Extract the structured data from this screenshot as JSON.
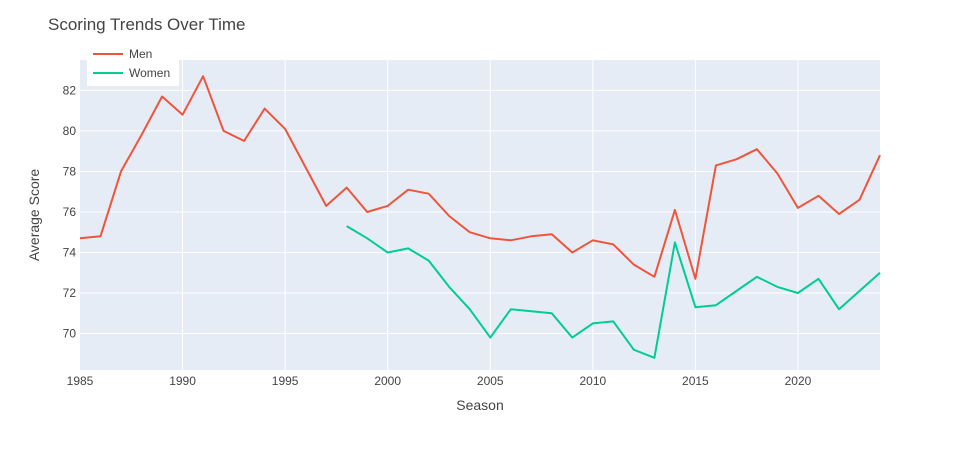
{
  "chart_data": {
    "type": "line",
    "title": "Scoring Trends Over Time",
    "xlabel": "Season",
    "ylabel": "Average Score",
    "xlim": [
      1985,
      2024
    ],
    "ylim": [
      68.2,
      83.5
    ],
    "xticks": [
      1985,
      1990,
      1995,
      2000,
      2005,
      2010,
      2015,
      2020
    ],
    "yticks": [
      70,
      72,
      74,
      76,
      78,
      80,
      82
    ],
    "grid": true,
    "legend": "top-left",
    "series": [
      {
        "name": "Men",
        "color": "#EF553B",
        "x": [
          1985,
          1986,
          1987,
          1988,
          1989,
          1990,
          1991,
          1992,
          1993,
          1994,
          1995,
          1996,
          1997,
          1998,
          1999,
          2000,
          2001,
          2002,
          2003,
          2004,
          2005,
          2006,
          2007,
          2008,
          2009,
          2010,
          2011,
          2012,
          2013,
          2014,
          2015,
          2016,
          2017,
          2018,
          2019,
          2020,
          2021,
          2022,
          2023,
          2024
        ],
        "values": [
          74.7,
          74.8,
          78.0,
          79.8,
          81.7,
          80.8,
          82.7,
          80.0,
          79.5,
          81.1,
          80.1,
          78.2,
          76.3,
          77.2,
          76.0,
          76.3,
          77.1,
          76.9,
          75.8,
          75.0,
          74.7,
          74.6,
          74.8,
          74.9,
          74.0,
          74.6,
          74.4,
          73.4,
          72.8,
          76.1,
          72.7,
          78.3,
          78.6,
          79.1,
          77.9,
          76.2,
          76.8,
          75.9,
          76.6,
          78.8
        ]
      },
      {
        "name": "Women",
        "color": "#00CC96",
        "x": [
          1998,
          1999,
          2000,
          2001,
          2002,
          2003,
          2004,
          2005,
          2006,
          2007,
          2008,
          2009,
          2010,
          2011,
          2012,
          2013,
          2014,
          2015,
          2016,
          2017,
          2018,
          2019,
          2020,
          2021,
          2022,
          2023,
          2024
        ],
        "values": [
          75.3,
          74.7,
          74.0,
          74.2,
          73.6,
          72.3,
          71.2,
          69.8,
          71.2,
          71.1,
          71.0,
          69.8,
          70.5,
          70.6,
          69.2,
          68.8,
          74.5,
          71.3,
          71.4,
          72.1,
          72.8,
          72.3,
          72.0,
          72.7,
          71.2,
          72.1,
          73.0
        ]
      }
    ]
  }
}
